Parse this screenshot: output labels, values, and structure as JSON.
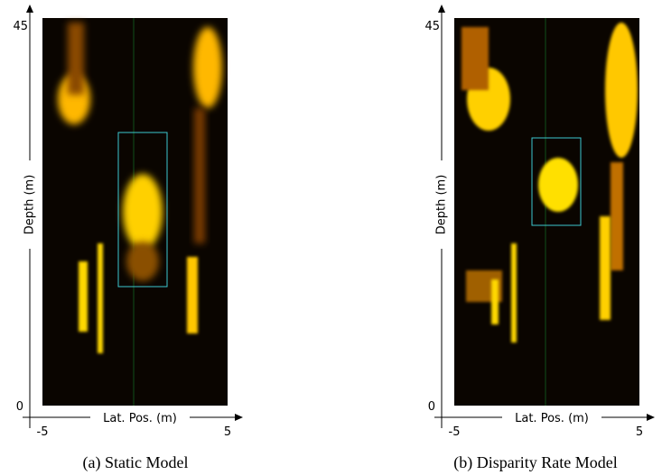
{
  "panels": [
    {
      "y_label": "Depth (m)",
      "x_label": "Lat. Pos. (m)",
      "y_ticks": [
        "45",
        "0"
      ],
      "x_ticks": [
        "-5",
        "5"
      ],
      "caption": "(a) Static Model"
    },
    {
      "y_label": "Depth (m)",
      "x_label": "Lat. Pos. (m)",
      "y_ticks": [
        "45",
        "0"
      ],
      "x_ticks": [
        "-5",
        "5"
      ],
      "caption": "(b) Disparity Rate Model"
    }
  ]
}
